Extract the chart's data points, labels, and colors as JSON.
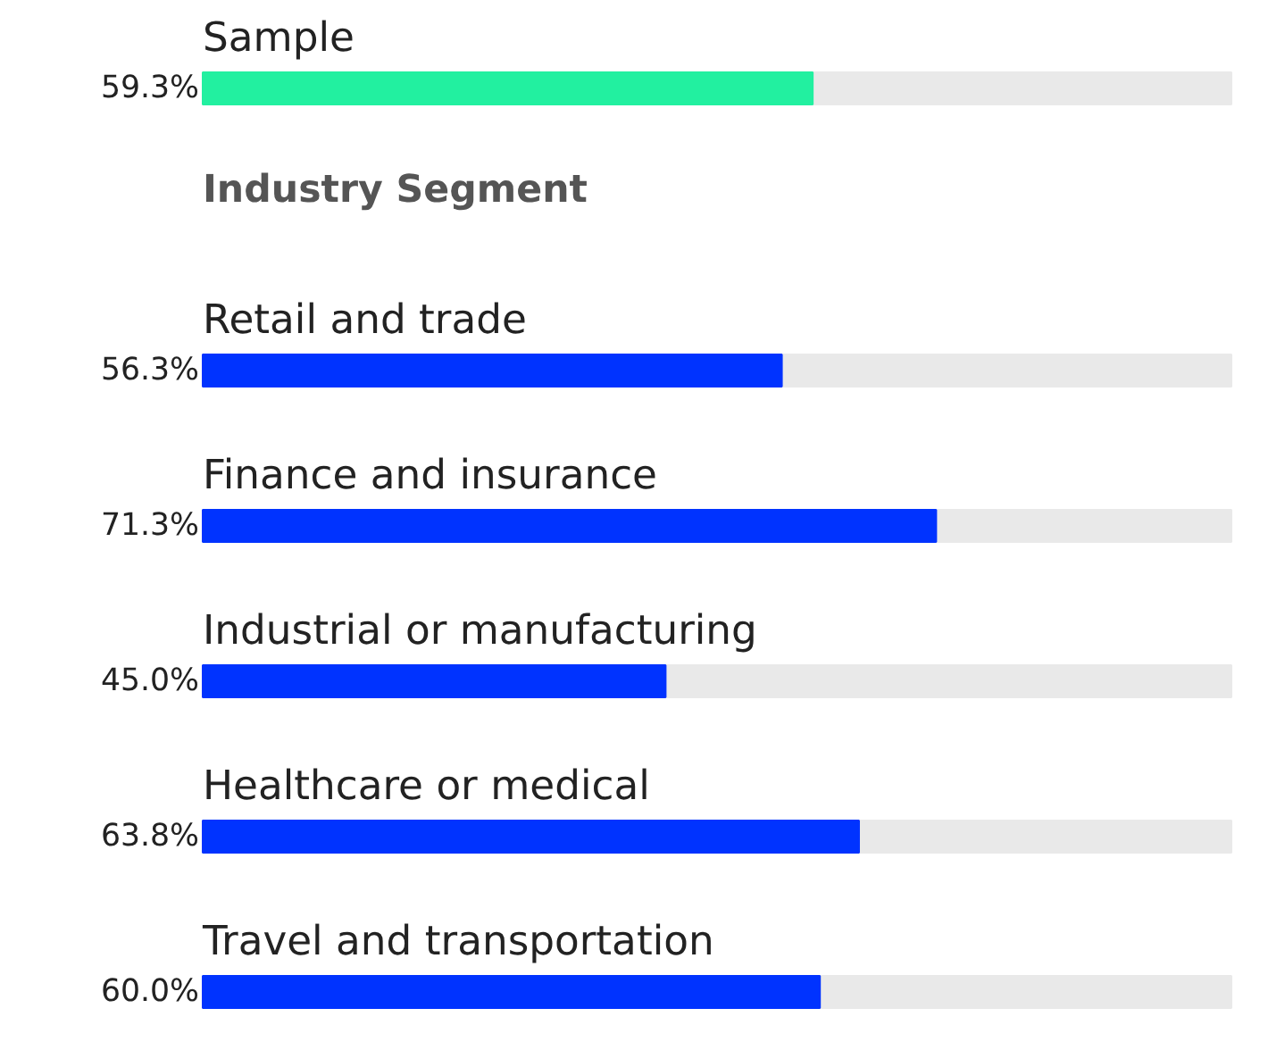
{
  "chart_data": {
    "type": "bar",
    "orientation": "horizontal",
    "categories": [
      "Sample",
      "Retail and trade",
      "Finance and insurance",
      "Industrial or manufacturing",
      "Healthcare or medical",
      "Travel and transportation"
    ],
    "values": [
      59.3,
      56.3,
      71.3,
      45.0,
      63.8,
      60.0
    ],
    "value_labels": [
      "59.3%",
      "56.3%",
      "71.3%",
      "45.0%",
      "63.8%",
      "60.0%"
    ],
    "colors": [
      "#22f0a0",
      "#0033ff",
      "#0033ff",
      "#0033ff",
      "#0033ff",
      "#0033ff"
    ],
    "xlim": [
      0,
      100
    ],
    "annotations": [
      "Industry Segment"
    ],
    "tick_labels": false,
    "grid": false
  }
}
